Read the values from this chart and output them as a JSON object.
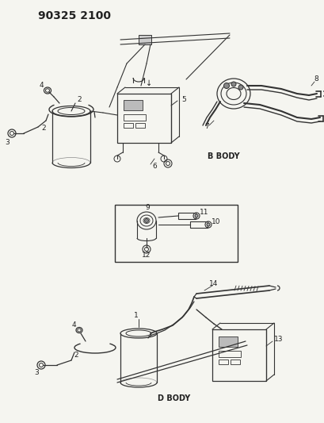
{
  "title": "90325 2100",
  "bg_color": "#f5f5f0",
  "line_color": "#333333",
  "label_color": "#222222",
  "fig_width": 4.09,
  "fig_height": 5.33,
  "dpi": 100
}
